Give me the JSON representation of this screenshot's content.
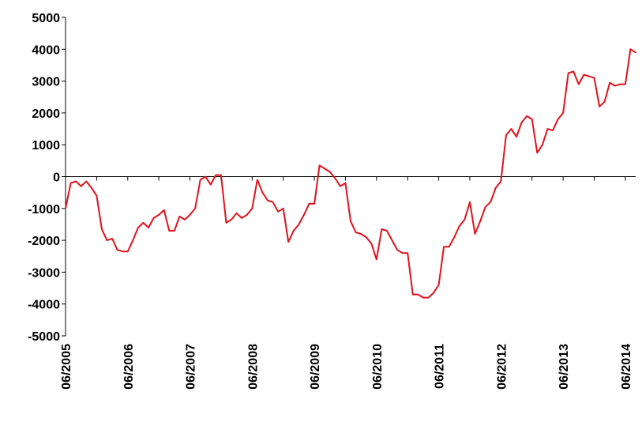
{
  "chart_data": {
    "type": "line",
    "title": "",
    "xlabel": "",
    "ylabel": "",
    "ylim": [
      -5000,
      5000
    ],
    "yticks": [
      5000,
      4000,
      3000,
      2000,
      1000,
      0,
      -1000,
      -2000,
      -3000,
      -4000,
      -5000
    ],
    "xlim": [
      "2005-06",
      "2014-08"
    ],
    "xtick_labels": [
      "06/2005",
      "06/2006",
      "06/2007",
      "06/2008",
      "06/2009",
      "06/2010",
      "06/2011",
      "06/2012",
      "06/2013",
      "06/2014"
    ],
    "grid": false,
    "legend": "none",
    "series": [
      {
        "color": "#e0131c",
        "points": [
          [
            "2005-06",
            -1000
          ],
          [
            "2005-07",
            -200
          ],
          [
            "2005-08",
            -150
          ],
          [
            "2005-09",
            -300
          ],
          [
            "2005-10",
            -150
          ],
          [
            "2005-11",
            -350
          ],
          [
            "2005-12",
            -600
          ],
          [
            "2006-01",
            -1650
          ],
          [
            "2006-02",
            -2000
          ],
          [
            "2006-03",
            -1950
          ],
          [
            "2006-04",
            -2300
          ],
          [
            "2006-05",
            -2350
          ],
          [
            "2006-06",
            -2350
          ],
          [
            "2006-07",
            -2000
          ],
          [
            "2006-08",
            -1600
          ],
          [
            "2006-09",
            -1450
          ],
          [
            "2006-10",
            -1600
          ],
          [
            "2006-11",
            -1300
          ],
          [
            "2006-12",
            -1200
          ],
          [
            "2007-01",
            -1050
          ],
          [
            "2007-02",
            -1700
          ],
          [
            "2007-03",
            -1700
          ],
          [
            "2007-04",
            -1250
          ],
          [
            "2007-05",
            -1350
          ],
          [
            "2007-06",
            -1200
          ],
          [
            "2007-07",
            -1000
          ],
          [
            "2007-08",
            -100
          ],
          [
            "2007-09",
            0
          ],
          [
            "2007-10",
            -250
          ],
          [
            "2007-11",
            50
          ],
          [
            "2007-12",
            50
          ],
          [
            "2008-01",
            -1450
          ],
          [
            "2008-02",
            -1350
          ],
          [
            "2008-03",
            -1150
          ],
          [
            "2008-04",
            -1300
          ],
          [
            "2008-05",
            -1200
          ],
          [
            "2008-06",
            -1000
          ],
          [
            "2008-07",
            -100
          ],
          [
            "2008-08",
            -500
          ],
          [
            "2008-09",
            -750
          ],
          [
            "2008-10",
            -800
          ],
          [
            "2008-11",
            -1100
          ],
          [
            "2008-12",
            -1000
          ],
          [
            "2009-01",
            -2050
          ],
          [
            "2009-02",
            -1700
          ],
          [
            "2009-03",
            -1500
          ],
          [
            "2009-04",
            -1200
          ],
          [
            "2009-05",
            -850
          ],
          [
            "2009-06",
            -850
          ],
          [
            "2009-07",
            350
          ],
          [
            "2009-08",
            250
          ],
          [
            "2009-09",
            150
          ],
          [
            "2009-10",
            -50
          ],
          [
            "2009-11",
            -300
          ],
          [
            "2009-12",
            -200
          ],
          [
            "2010-01",
            -1400
          ],
          [
            "2010-02",
            -1750
          ],
          [
            "2010-03",
            -1800
          ],
          [
            "2010-04",
            -1900
          ],
          [
            "2010-05",
            -2100
          ],
          [
            "2010-06",
            -2600
          ],
          [
            "2010-07",
            -1650
          ],
          [
            "2010-08",
            -1700
          ],
          [
            "2010-09",
            -2000
          ],
          [
            "2010-10",
            -2300
          ],
          [
            "2010-11",
            -2400
          ],
          [
            "2010-12",
            -2400
          ],
          [
            "2011-01",
            -3700
          ],
          [
            "2011-02",
            -3700
          ],
          [
            "2011-03",
            -3800
          ],
          [
            "2011-04",
            -3800
          ],
          [
            "2011-05",
            -3650
          ],
          [
            "2011-06",
            -3400
          ],
          [
            "2011-07",
            -2200
          ],
          [
            "2011-08",
            -2200
          ],
          [
            "2011-09",
            -1900
          ],
          [
            "2011-10",
            -1550
          ],
          [
            "2011-11",
            -1350
          ],
          [
            "2011-12",
            -800
          ],
          [
            "2012-01",
            -1800
          ],
          [
            "2012-02",
            -1400
          ],
          [
            "2012-03",
            -950
          ],
          [
            "2012-04",
            -800
          ],
          [
            "2012-05",
            -350
          ],
          [
            "2012-06",
            -150
          ],
          [
            "2012-07",
            1300
          ],
          [
            "2012-08",
            1500
          ],
          [
            "2012-09",
            1250
          ],
          [
            "2012-10",
            1700
          ],
          [
            "2012-11",
            1900
          ],
          [
            "2012-12",
            1800
          ],
          [
            "2013-01",
            750
          ],
          [
            "2013-02",
            1000
          ],
          [
            "2013-03",
            1500
          ],
          [
            "2013-04",
            1450
          ],
          [
            "2013-05",
            1800
          ],
          [
            "2013-06",
            2000
          ],
          [
            "2013-07",
            3250
          ],
          [
            "2013-08",
            3300
          ],
          [
            "2013-09",
            2900
          ],
          [
            "2013-10",
            3200
          ],
          [
            "2013-11",
            3150
          ],
          [
            "2013-12",
            3100
          ],
          [
            "2014-01",
            2200
          ],
          [
            "2014-02",
            2350
          ],
          [
            "2014-03",
            2950
          ],
          [
            "2014-04",
            2850
          ],
          [
            "2014-05",
            2900
          ],
          [
            "2014-06",
            2900
          ],
          [
            "2014-07",
            4000
          ],
          [
            "2014-08",
            3900
          ]
        ]
      }
    ]
  }
}
